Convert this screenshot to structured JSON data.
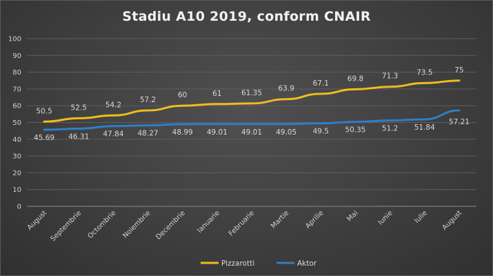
{
  "chart_data": {
    "type": "line",
    "title": "Stadiu A10 2019, conform CNAIR",
    "categories": [
      "August",
      "Septembrie",
      "Octombrie",
      "Noiembrie",
      "Decembrie",
      "Ianuarie",
      "Februarie",
      "Martie",
      "Aprilie",
      "Mai",
      "Iunie",
      "Iulie",
      "August"
    ],
    "series": [
      {
        "name": "Pizzarotti",
        "color": "#f0bc1f",
        "values": [
          50.5,
          52.5,
          54.2,
          57.2,
          60,
          61,
          61.35,
          63.9,
          67.1,
          69.8,
          71.3,
          73.5,
          75
        ],
        "labels": [
          "50.5",
          "52.5",
          "54.2",
          "57.2",
          "60",
          "61",
          "61.35",
          "63.9",
          "67.1",
          "69.8",
          "71.3",
          "73.5",
          "75"
        ]
      },
      {
        "name": "Aktor",
        "color": "#2e7fc4",
        "values": [
          45.69,
          46.31,
          47.84,
          48.27,
          48.99,
          49.01,
          49.01,
          49.05,
          49.5,
          50.35,
          51.2,
          51.84,
          57.21
        ],
        "labels": [
          "45.69",
          "46.31",
          "47.84",
          "48.27",
          "48.99",
          "49.01",
          "49.01",
          "49.05",
          "49.5",
          "50.35",
          "51.2",
          "51.84",
          "57.21"
        ]
      }
    ],
    "ylim": [
      0,
      100
    ],
    "yticks": [
      "0",
      "10",
      "20",
      "30",
      "40",
      "50",
      "60",
      "70",
      "80",
      "90",
      "100"
    ],
    "grid": true,
    "legend": "bottom"
  }
}
